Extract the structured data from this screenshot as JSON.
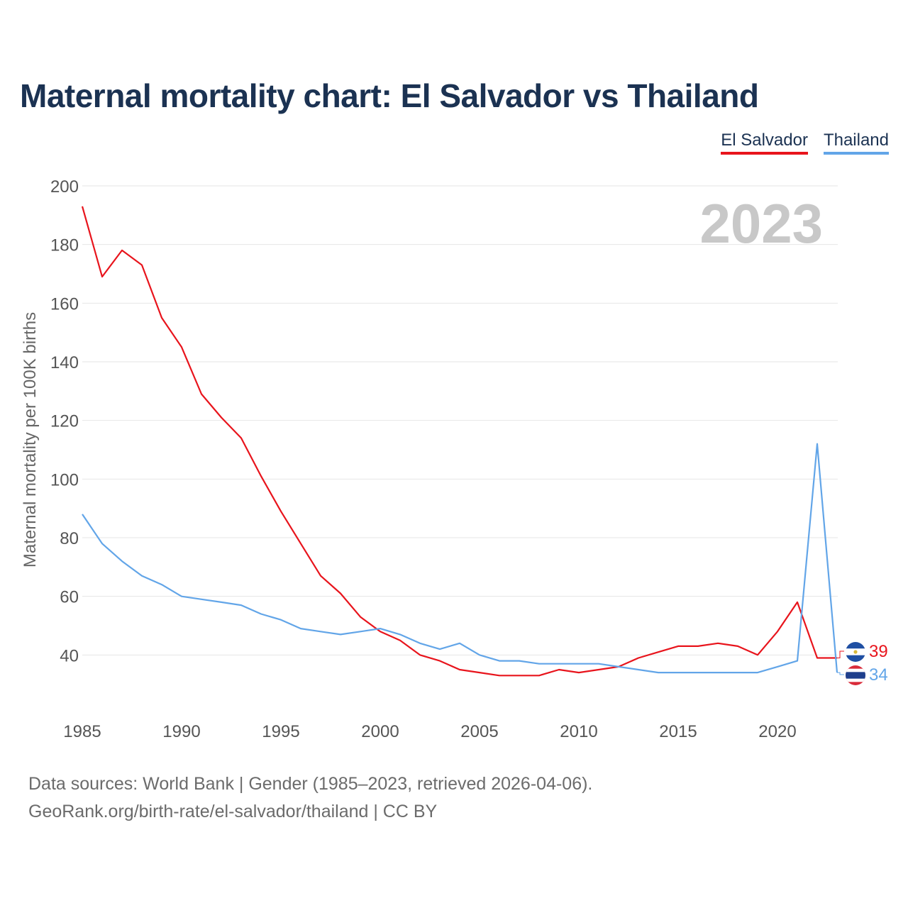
{
  "colors": {
    "el_salvador": "#e8141c",
    "thailand": "#62a5e8",
    "title": "#1b3252",
    "year_watermark": "#c8c8c8"
  },
  "chart_data": {
    "type": "line",
    "title": "Maternal mortality chart: El Salvador vs Thailand",
    "xlabel": "",
    "ylabel": "Maternal mortality per 100K births",
    "xlim": [
      1985,
      2023
    ],
    "ylim": [
      20,
      200
    ],
    "yticks": [
      40,
      60,
      80,
      100,
      120,
      140,
      160,
      180,
      200
    ],
    "xticks": [
      1985,
      1990,
      1995,
      2000,
      2005,
      2010,
      2015,
      2020
    ],
    "year_label": "2023",
    "grid": true,
    "legend_position": "top-right",
    "x": [
      1985,
      1986,
      1987,
      1988,
      1989,
      1990,
      1991,
      1992,
      1993,
      1994,
      1995,
      1996,
      1997,
      1998,
      1999,
      2000,
      2001,
      2002,
      2003,
      2004,
      2005,
      2006,
      2007,
      2008,
      2009,
      2010,
      2011,
      2012,
      2013,
      2014,
      2015,
      2016,
      2017,
      2018,
      2019,
      2020,
      2021,
      2022,
      2023
    ],
    "series": [
      {
        "name": "El Salvador",
        "color_key": "el_salvador",
        "end_label": "39",
        "flag": "el-salvador-flag-icon",
        "values": [
          193,
          169,
          178,
          173,
          155,
          145,
          129,
          121,
          114,
          101,
          89,
          78,
          67,
          61,
          53,
          48,
          45,
          40,
          38,
          35,
          34,
          33,
          33,
          33,
          35,
          34,
          35,
          36,
          39,
          41,
          43,
          43,
          44,
          43,
          40,
          48,
          58,
          39,
          39
        ]
      },
      {
        "name": "Thailand",
        "color_key": "thailand",
        "end_label": "34",
        "flag": "thailand-flag-icon",
        "values": [
          88,
          78,
          72,
          67,
          64,
          60,
          59,
          58,
          57,
          54,
          52,
          49,
          48,
          47,
          48,
          49,
          47,
          44,
          42,
          44,
          40,
          38,
          38,
          37,
          37,
          37,
          37,
          36,
          35,
          34,
          34,
          34,
          34,
          34,
          34,
          36,
          38,
          112,
          34
        ]
      }
    ]
  },
  "footer": {
    "sources": "Data sources: World Bank | Gender (1985–2023, retrieved 2026-04-06).",
    "credit": "GeoRank.org/birth-rate/el-salvador/thailand | CC BY"
  }
}
